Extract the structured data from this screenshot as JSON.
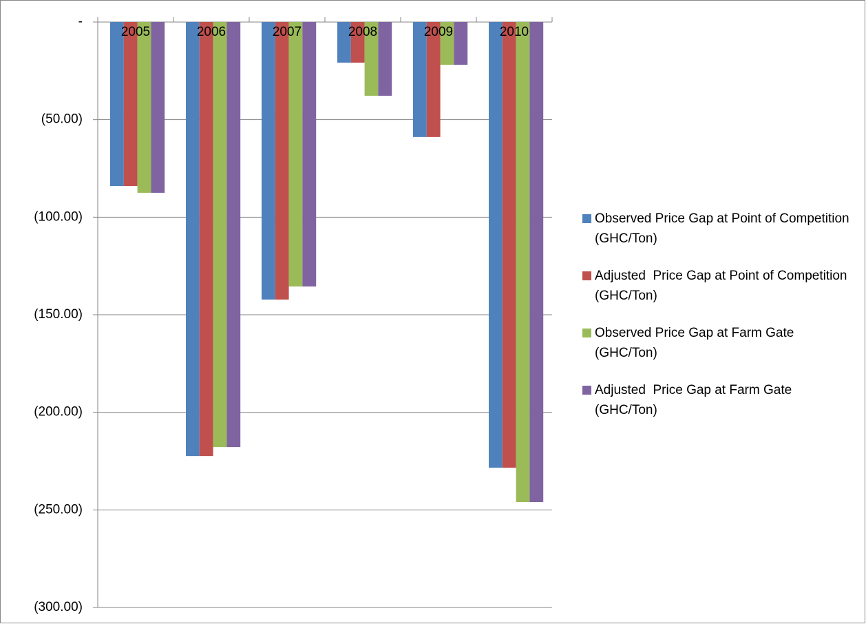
{
  "chart_data": {
    "type": "bar",
    "categories": [
      "2005",
      "2006",
      "2007",
      "2008",
      "2009",
      "2010"
    ],
    "series": [
      {
        "name": "Observed Price Gap at Point of Competition (GHC/Ton)",
        "color": "#4f81bd",
        "values": [
          -84,
          -222.4,
          -142.2,
          -20.8,
          -58.9,
          -228.4
        ]
      },
      {
        "name": "Adjusted  Price Gap at Point of Competition (GHC/Ton)",
        "color": "#c0504d",
        "values": [
          -84,
          -222.4,
          -142.2,
          -20.8,
          -58.9,
          -228.4
        ]
      },
      {
        "name": "Observed Price Gap at Farm Gate (GHC/Ton)",
        "color": "#9bbb59",
        "values": [
          -87.5,
          -217.8,
          -135.5,
          -37.8,
          -21.9,
          -246
        ]
      },
      {
        "name": "Adjusted  Price Gap at Farm Gate (GHC/Ton)",
        "color": "#8064a2",
        "values": [
          -87.5,
          -217.8,
          -135.5,
          -37.8,
          -21.9,
          -246
        ]
      }
    ],
    "ylim": [
      -300,
      0
    ],
    "yticks": [
      {
        "value": 0,
        "label": "-"
      },
      {
        "value": -50,
        "label": "(50.00)"
      },
      {
        "value": -100,
        "label": "(100.00)"
      },
      {
        "value": -150,
        "label": "(150.00)"
      },
      {
        "value": -200,
        "label": "(200.00)"
      },
      {
        "value": -250,
        "label": "(250.00)"
      },
      {
        "value": -300,
        "label": "(300.00)"
      }
    ],
    "grid": true,
    "legend": "right"
  }
}
